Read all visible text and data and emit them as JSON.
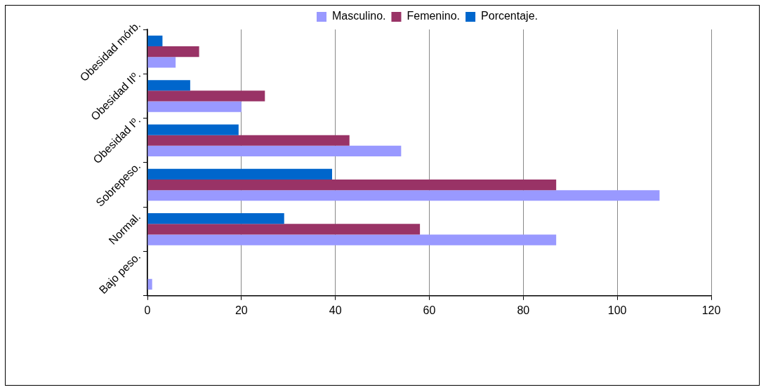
{
  "chart_data": {
    "type": "bar",
    "orientation": "horizontal",
    "categories": [
      "Obesidad mórb.",
      "Obesidad IIº.",
      "Obesidad Iº.",
      "Sobrepeso.",
      "Normal.",
      "Bajo peso."
    ],
    "series": [
      {
        "name": "Masculino.",
        "color": "#9999ff",
        "values": [
          6,
          20,
          54,
          109,
          87,
          1
        ]
      },
      {
        "name": "Femenino.",
        "color": "#993366",
        "values": [
          11,
          25,
          43,
          87,
          58,
          null
        ]
      },
      {
        "name": "Porcentaje.",
        "color": "#0066cc",
        "values": [
          3.2,
          9.1,
          19.4,
          39.3,
          29.1,
          null
        ]
      }
    ],
    "xlim": [
      0,
      120
    ],
    "xticks": [
      0,
      20,
      40,
      60,
      80,
      100,
      120
    ],
    "grid": "x",
    "legend": "top"
  }
}
